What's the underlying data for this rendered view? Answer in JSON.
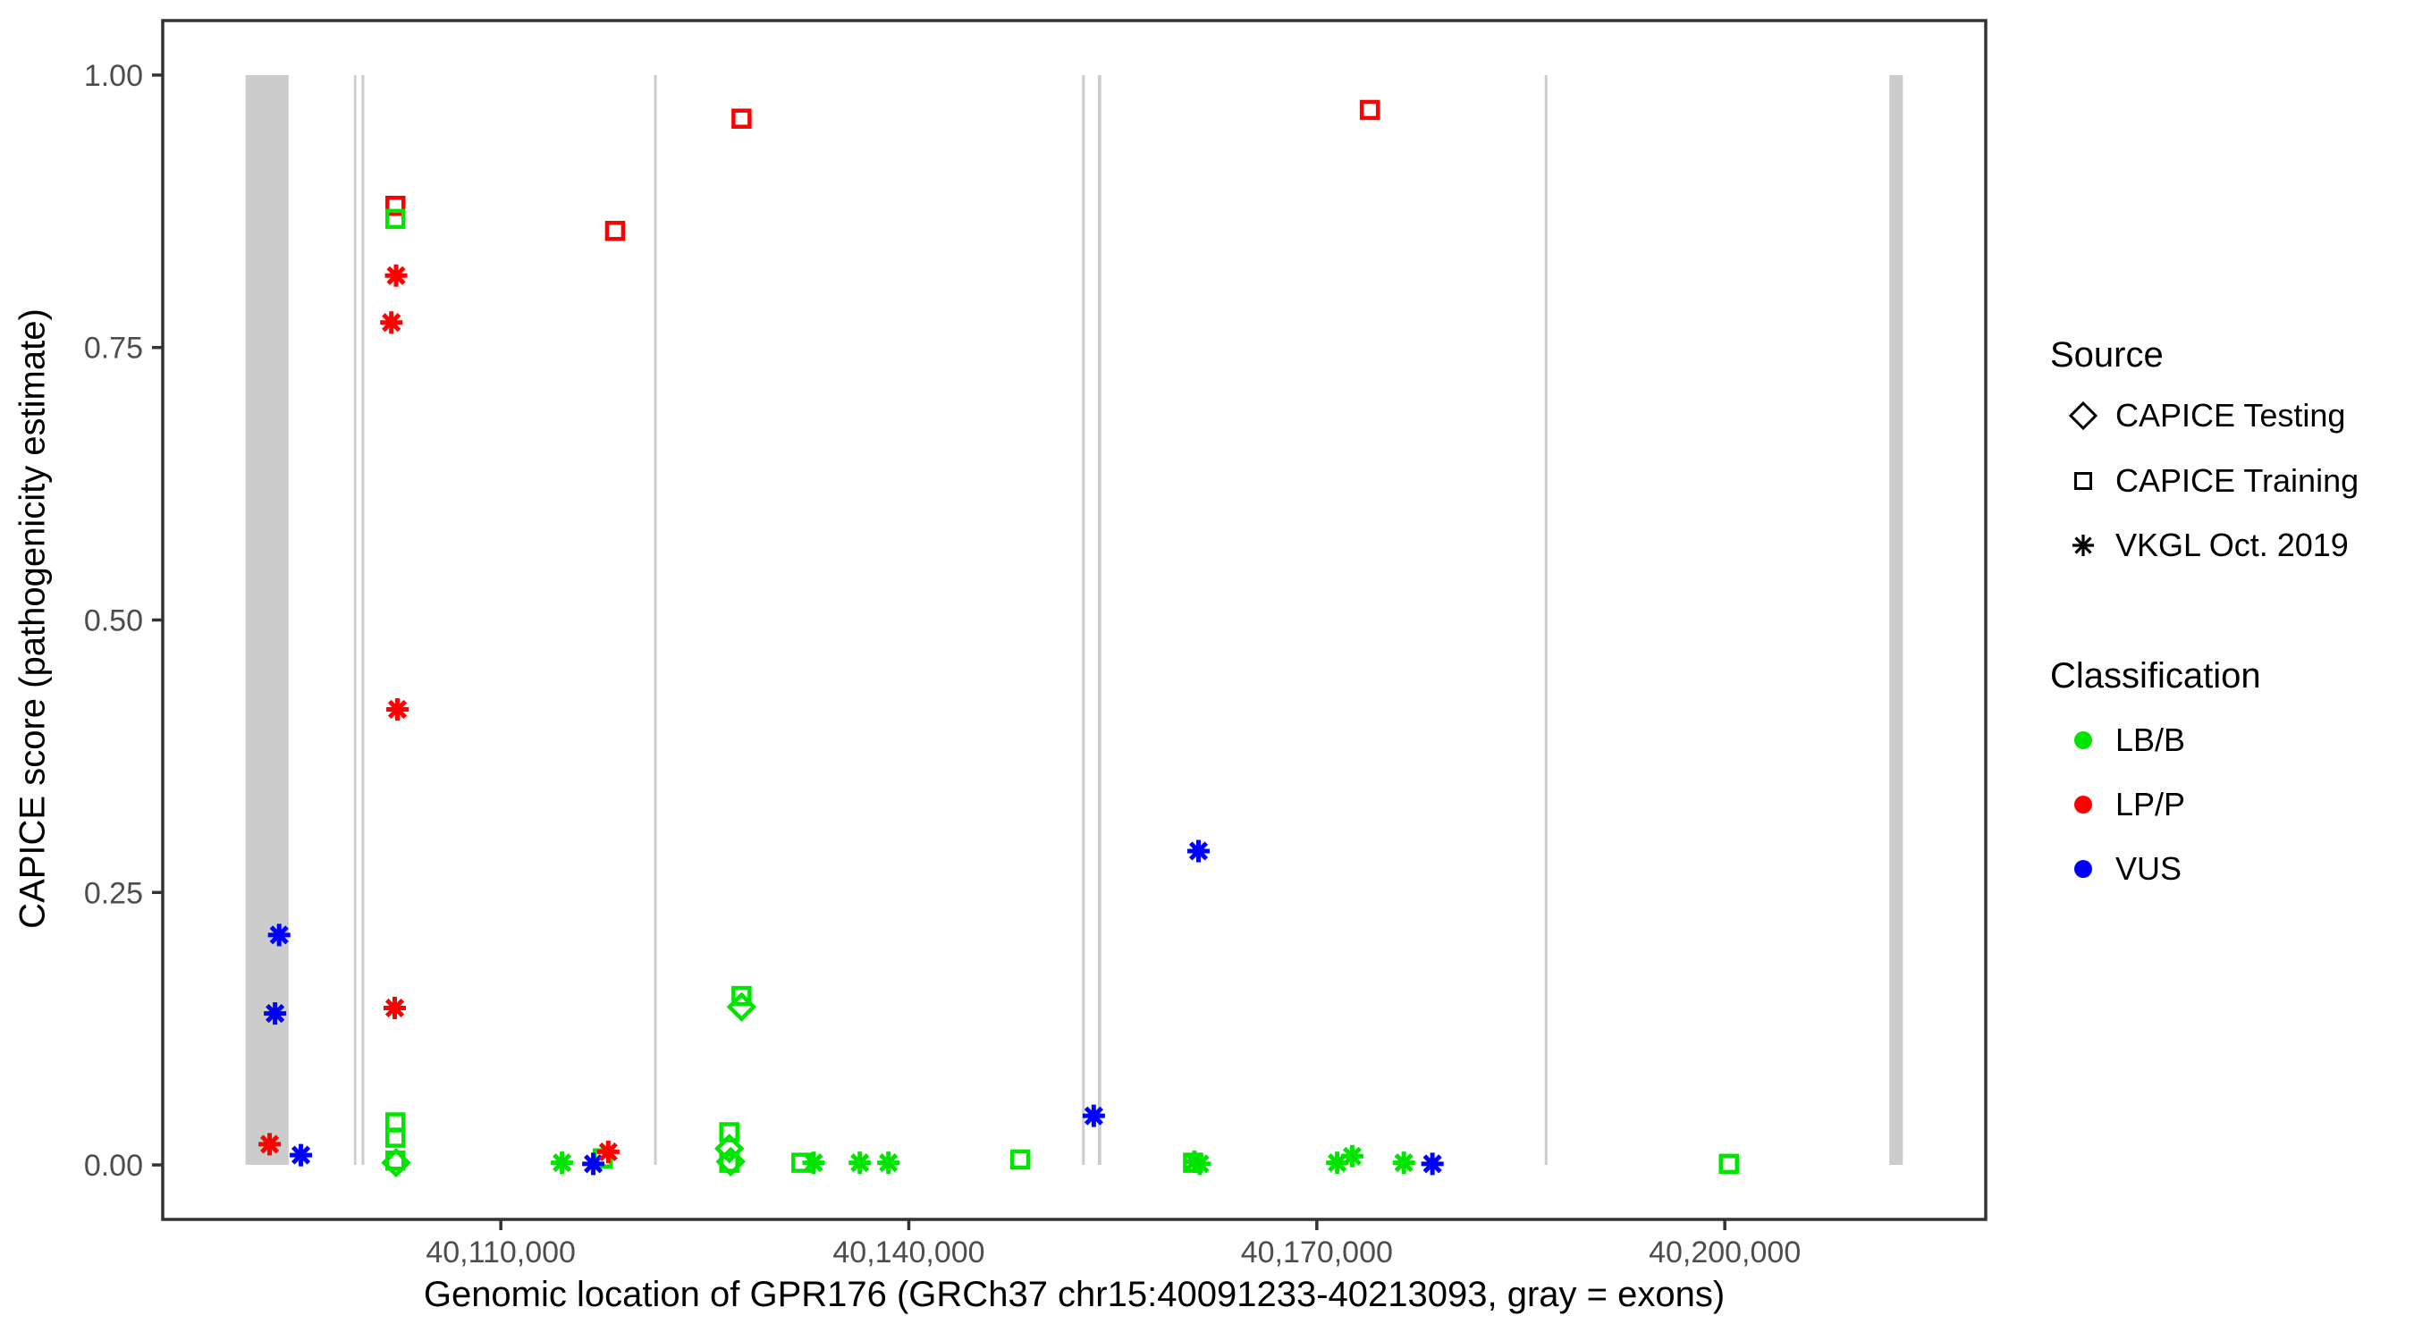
{
  "chart_data": {
    "type": "scatter",
    "title": "",
    "xlabel": "Genomic location of GPR176 (GRCh37 chr15:40091233-40213093, gray = exons)",
    "ylabel": "CAPICE score (pathogenicity estimate)",
    "x_domain": [
      40085140,
      40219186
    ],
    "y_domain": [
      -0.05,
      1.05
    ],
    "grid": "off",
    "x_ticks": [
      {
        "value": 40110000,
        "label": "40,110,000"
      },
      {
        "value": 40140000,
        "label": "40,140,000"
      },
      {
        "value": 40170000,
        "label": "40,170,000"
      },
      {
        "value": 40200000,
        "label": "40,200,000"
      }
    ],
    "y_ticks": [
      {
        "value": 0.0,
        "label": "0.00"
      },
      {
        "value": 0.25,
        "label": "0.25"
      },
      {
        "value": 0.5,
        "label": "0.50"
      },
      {
        "value": 0.75,
        "label": "0.75"
      },
      {
        "value": 1.0,
        "label": "1.00"
      }
    ],
    "exon_color": "#CCCCCC",
    "exons": [
      [
        40091233,
        40094400
      ],
      [
        40099200,
        40099380
      ],
      [
        40099760,
        40099960
      ],
      [
        40121270,
        40121470
      ],
      [
        40152740,
        40152940
      ],
      [
        40153900,
        40154150
      ],
      [
        40186760,
        40186960
      ],
      [
        40212100,
        40213093
      ]
    ],
    "classification_colors": {
      "LB/B": "#00E400",
      "LP/P": "#FF0000",
      "VUS": "#0000FF"
    },
    "series": [
      {
        "name": "CAPICE Training",
        "shape": "square",
        "points": [
          {
            "x": 40102250,
            "y": 0.88,
            "class": "LP/P"
          },
          {
            "x": 40102250,
            "y": 0.868,
            "class": "LB/B"
          },
          {
            "x": 40102250,
            "y": 0.039,
            "class": "LB/B"
          },
          {
            "x": 40102250,
            "y": 0.025,
            "class": "LB/B"
          },
          {
            "x": 40102250,
            "y": 0.004,
            "class": "LB/B"
          },
          {
            "x": 40117500,
            "y": 0.006,
            "class": "LB/B"
          },
          {
            "x": 40118400,
            "y": 0.857,
            "class": "LP/P"
          },
          {
            "x": 40126800,
            "y": 0.03,
            "class": "LB/B"
          },
          {
            "x": 40126800,
            "y": 0.002,
            "class": "LB/B"
          },
          {
            "x": 40127700,
            "y": 0.155,
            "class": "LB/B"
          },
          {
            "x": 40127700,
            "y": 0.96,
            "class": "LP/P"
          },
          {
            "x": 40132100,
            "y": 0.002,
            "class": "LB/B"
          },
          {
            "x": 40148200,
            "y": 0.005,
            "class": "LB/B"
          },
          {
            "x": 40160900,
            "y": 0.002,
            "class": "LB/B"
          },
          {
            "x": 40173900,
            "y": 0.968,
            "class": "LP/P"
          },
          {
            "x": 40200300,
            "y": 0.001,
            "class": "LB/B"
          }
        ]
      },
      {
        "name": "CAPICE Testing",
        "shape": "diamond",
        "points": [
          {
            "x": 40102300,
            "y": 0.002,
            "class": "LB/B"
          },
          {
            "x": 40126800,
            "y": 0.015,
            "class": "LB/B"
          },
          {
            "x": 40126900,
            "y": 0.003,
            "class": "LB/B"
          },
          {
            "x": 40127700,
            "y": 0.145,
            "class": "LB/B"
          }
        ]
      },
      {
        "name": "VKGL Oct. 2019",
        "shape": "asterisk",
        "points": [
          {
            "x": 40093000,
            "y": 0.019,
            "class": "LP/P"
          },
          {
            "x": 40093400,
            "y": 0.139,
            "class": "VUS"
          },
          {
            "x": 40093700,
            "y": 0.211,
            "class": "VUS"
          },
          {
            "x": 40095300,
            "y": 0.009,
            "class": "VUS"
          },
          {
            "x": 40101950,
            "y": 0.773,
            "class": "LP/P"
          },
          {
            "x": 40102300,
            "y": 0.816,
            "class": "LP/P"
          },
          {
            "x": 40102400,
            "y": 0.418,
            "class": "LP/P"
          },
          {
            "x": 40102200,
            "y": 0.144,
            "class": "LP/P"
          },
          {
            "x": 40114500,
            "y": 0.002,
            "class": "LB/B"
          },
          {
            "x": 40116800,
            "y": 0.001,
            "class": "VUS"
          },
          {
            "x": 40117900,
            "y": 0.012,
            "class": "LP/P"
          },
          {
            "x": 40133000,
            "y": 0.002,
            "class": "LB/B"
          },
          {
            "x": 40136400,
            "y": 0.002,
            "class": "LB/B"
          },
          {
            "x": 40138500,
            "y": 0.002,
            "class": "LB/B"
          },
          {
            "x": 40153600,
            "y": 0.045,
            "class": "VUS"
          },
          {
            "x": 40161000,
            "y": 0.003,
            "class": "LB/B"
          },
          {
            "x": 40161400,
            "y": 0.001,
            "class": "LB/B"
          },
          {
            "x": 40161300,
            "y": 0.288,
            "class": "VUS"
          },
          {
            "x": 40171500,
            "y": 0.002,
            "class": "LB/B"
          },
          {
            "x": 40172600,
            "y": 0.008,
            "class": "LB/B"
          },
          {
            "x": 40176400,
            "y": 0.002,
            "class": "LB/B"
          },
          {
            "x": 40178500,
            "y": 0.001,
            "class": "VUS"
          }
        ]
      }
    ]
  },
  "legend": {
    "source_title": "Source",
    "source_items": [
      {
        "label": "CAPICE Testing",
        "shape": "diamond"
      },
      {
        "label": "CAPICE Training",
        "shape": "square"
      },
      {
        "label": "VKGL Oct. 2019",
        "shape": "asterisk"
      }
    ],
    "classification_title": "Classification",
    "classification_items": [
      {
        "label": "LB/B",
        "color": "#00E400"
      },
      {
        "label": "LP/P",
        "color": "#FF0000"
      },
      {
        "label": "VUS",
        "color": "#0000FF"
      }
    ]
  }
}
